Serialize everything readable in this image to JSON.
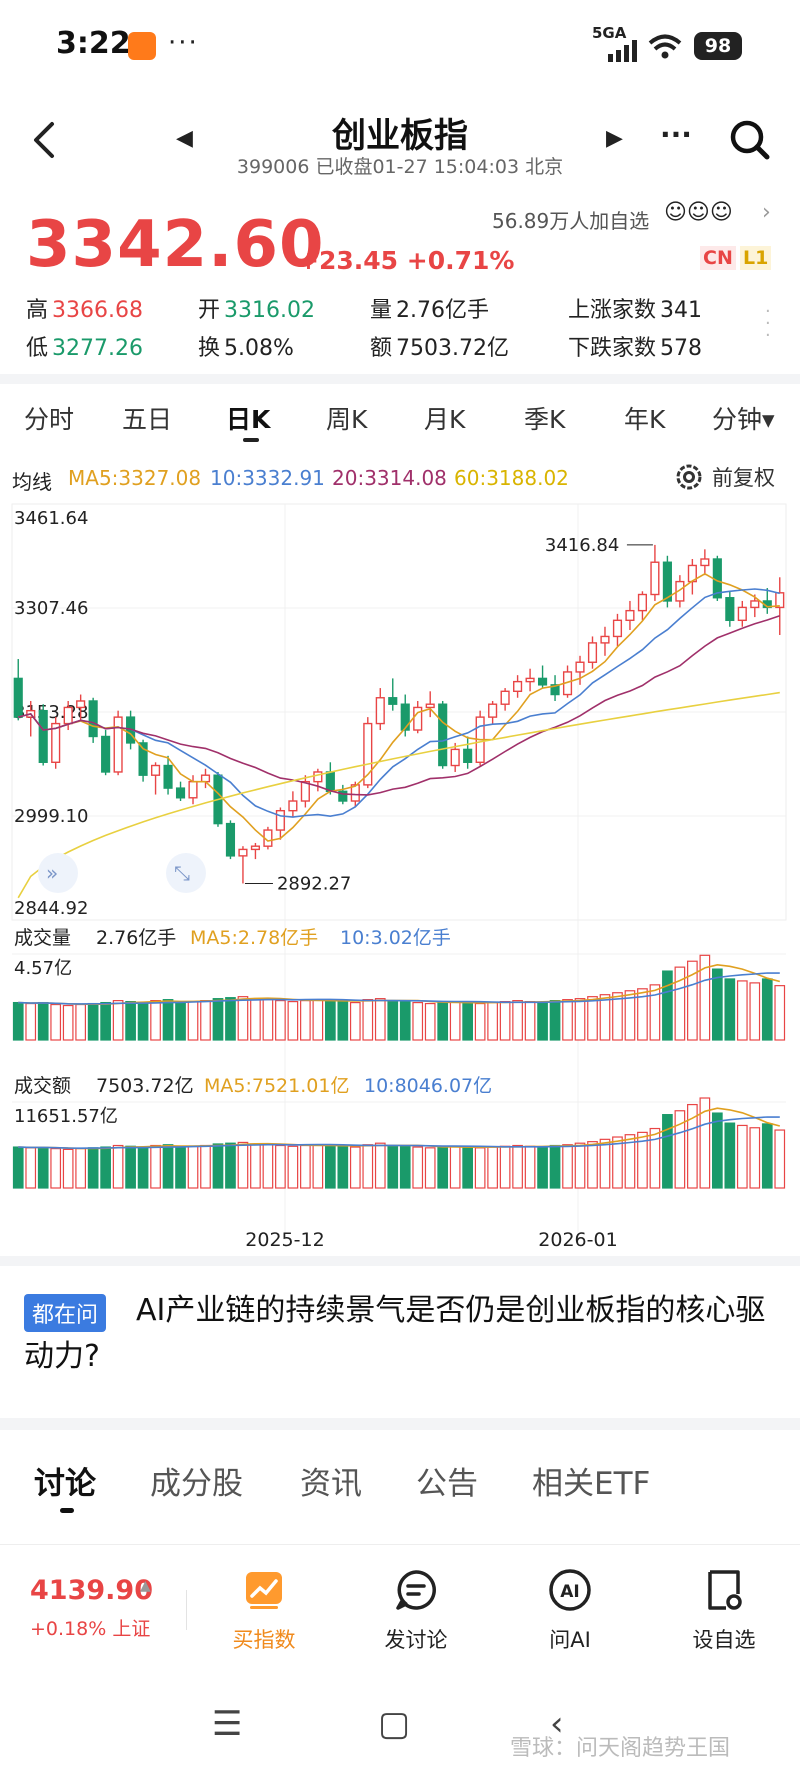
{
  "status_bar": {
    "time": "3:22",
    "dots": "···",
    "network": "5GA",
    "battery": "98"
  },
  "header": {
    "title": "创业板指",
    "code": "399006",
    "status": "已收盘01-27 15:04:03 北京",
    "followers": "56.89万人加自选",
    "icons": [
      "back-icon",
      "prev-icon",
      "next-icon",
      "more-icon",
      "search-icon"
    ]
  },
  "quote": {
    "price": "3342.60",
    "change": "+23.45",
    "change_pct": "+0.71%",
    "tags": [
      "CN",
      "L1"
    ],
    "stats": {
      "high_label": "高",
      "high": "3366.68",
      "open_label": "开",
      "open": "3316.02",
      "vol_label": "量",
      "vol": "2.76亿手",
      "up_label": "上涨家数",
      "up": "341",
      "low_label": "低",
      "low": "3277.26",
      "turn_label": "换",
      "turn": "5.08%",
      "amt_label": "额",
      "amt": "7503.72亿",
      "down_label": "下跌家数",
      "down": "578"
    }
  },
  "period_tabs": [
    "分时",
    "五日",
    "日K",
    "周K",
    "月K",
    "季K",
    "年K",
    "分钟▾"
  ],
  "active_period": "日K",
  "ma_legend": {
    "label": "均线",
    "ma5": "MA5:3327.08",
    "ma10": "10:3332.91",
    "ma20": "20:3314.08",
    "ma60": "60:3188.02",
    "adjust": "前复权"
  },
  "colors": {
    "up": "#e84545",
    "down": "#1a9a6a",
    "ma5": "#e0a020",
    "ma10": "#4a7fd0",
    "ma20": "#a0306a",
    "ma60": "#e8d040"
  },
  "chart_data": [
    {
      "type": "candlestick",
      "title": "",
      "y_ticks": [
        "3461.64",
        "3307.46",
        "3153.28",
        "2999.10",
        "2844.92"
      ],
      "ylim": [
        2844.92,
        3461.64
      ],
      "annotations": {
        "high": "3416.84",
        "low": "2892.27"
      },
      "x_ticks": [
        "2025-12",
        "2026-01"
      ],
      "candles": [
        [
          3210,
          3240,
          3145,
          3150
        ],
        [
          3150,
          3175,
          3120,
          3160
        ],
        [
          3160,
          3170,
          3075,
          3080
        ],
        [
          3080,
          3150,
          3070,
          3140
        ],
        [
          3140,
          3175,
          3130,
          3165
        ],
        [
          3165,
          3185,
          3145,
          3175
        ],
        [
          3175,
          3180,
          3110,
          3120
        ],
        [
          3120,
          3130,
          3060,
          3065
        ],
        [
          3065,
          3160,
          3060,
          3150
        ],
        [
          3150,
          3160,
          3100,
          3110
        ],
        [
          3110,
          3115,
          3050,
          3060
        ],
        [
          3060,
          3080,
          3030,
          3075
        ],
        [
          3075,
          3090,
          3030,
          3040
        ],
        [
          3040,
          3050,
          3020,
          3025
        ],
        [
          3025,
          3060,
          3015,
          3050
        ],
        [
          3050,
          3070,
          3040,
          3060
        ],
        [
          3060,
          3065,
          2980,
          2985
        ],
        [
          2985,
          2990,
          2930,
          2935
        ],
        [
          2935,
          2950,
          2892.27,
          2945
        ],
        [
          2945,
          2955,
          2930,
          2950
        ],
        [
          2950,
          2980,
          2945,
          2975
        ],
        [
          2975,
          3010,
          2960,
          3005
        ],
        [
          3005,
          3035,
          2995,
          3020
        ],
        [
          3020,
          3060,
          3010,
          3050
        ],
        [
          3050,
          3070,
          3035,
          3065
        ],
        [
          3065,
          3080,
          3030,
          3035
        ],
        [
          3035,
          3045,
          3015,
          3020
        ],
        [
          3020,
          3050,
          3010,
          3045
        ],
        [
          3045,
          3150,
          3040,
          3140
        ],
        [
          3140,
          3195,
          3130,
          3180
        ],
        [
          3180,
          3210,
          3160,
          3170
        ],
        [
          3170,
          3185,
          3120,
          3130
        ],
        [
          3130,
          3175,
          3125,
          3165
        ],
        [
          3165,
          3190,
          3150,
          3170
        ],
        [
          3170,
          3175,
          3070,
          3075
        ],
        [
          3075,
          3110,
          3065,
          3100
        ],
        [
          3100,
          3120,
          3070,
          3080
        ],
        [
          3080,
          3160,
          3075,
          3150
        ],
        [
          3150,
          3175,
          3140,
          3170
        ],
        [
          3170,
          3195,
          3160,
          3190
        ],
        [
          3190,
          3215,
          3180,
          3205
        ],
        [
          3205,
          3225,
          3190,
          3210
        ],
        [
          3210,
          3230,
          3195,
          3200
        ],
        [
          3200,
          3215,
          3175,
          3185
        ],
        [
          3185,
          3230,
          3180,
          3220
        ],
        [
          3220,
          3245,
          3200,
          3235
        ],
        [
          3235,
          3275,
          3225,
          3265
        ],
        [
          3265,
          3290,
          3245,
          3275
        ],
        [
          3275,
          3310,
          3260,
          3300
        ],
        [
          3300,
          3330,
          3285,
          3315
        ],
        [
          3315,
          3345,
          3300,
          3340
        ],
        [
          3340,
          3416.84,
          3330,
          3390
        ],
        [
          3390,
          3400,
          3320,
          3330
        ],
        [
          3330,
          3370,
          3320,
          3360
        ],
        [
          3360,
          3395,
          3340,
          3385
        ],
        [
          3385,
          3410,
          3370,
          3395
        ],
        [
          3395,
          3400,
          3330,
          3335
        ],
        [
          3335,
          3345,
          3290,
          3300
        ],
        [
          3300,
          3330,
          3290,
          3320
        ],
        [
          3320,
          3340,
          3305,
          3330
        ],
        [
          3330,
          3350,
          3310,
          3320
        ],
        [
          3320,
          3366.68,
          3277.26,
          3342.6
        ]
      ]
    },
    {
      "type": "bar",
      "title": "成交量",
      "current": "2.76亿手",
      "ma5": "MA5:2.78亿手",
      "ma10": "10:3.02亿手",
      "ymax_label": "4.57亿",
      "ymax": 4.57,
      "values": [
        1.9,
        1.85,
        1.9,
        1.8,
        1.75,
        1.8,
        1.85,
        1.9,
        2.0,
        1.95,
        1.9,
        2.0,
        2.05,
        1.9,
        1.95,
        2.0,
        2.1,
        2.15,
        2.2,
        2.1,
        2.05,
        2.0,
        1.95,
        2.0,
        2.05,
        2.0,
        1.95,
        1.9,
        2.05,
        2.1,
        2.0,
        1.95,
        1.9,
        1.85,
        1.9,
        1.95,
        1.9,
        1.85,
        1.9,
        1.95,
        2.0,
        1.95,
        1.9,
        2.0,
        2.05,
        2.1,
        2.2,
        2.3,
        2.4,
        2.5,
        2.6,
        2.8,
        3.5,
        3.7,
        4.0,
        4.3,
        3.6,
        3.1,
        3.0,
        2.9,
        3.1,
        2.76
      ]
    },
    {
      "type": "bar",
      "title": "成交额",
      "current": "7503.72亿",
      "ma5": "MA5:7521.01亿",
      "ma10": "10:8046.07亿",
      "ymax_label": "11651.57亿",
      "ymax": 11651.57,
      "values": [
        5300,
        5200,
        5250,
        5100,
        5000,
        5100,
        5200,
        5300,
        5500,
        5400,
        5300,
        5500,
        5600,
        5300,
        5400,
        5500,
        5700,
        5800,
        5900,
        5700,
        5600,
        5500,
        5400,
        5500,
        5600,
        5500,
        5400,
        5300,
        5600,
        5800,
        5500,
        5400,
        5300,
        5200,
        5300,
        5400,
        5300,
        5200,
        5300,
        5400,
        5500,
        5400,
        5300,
        5500,
        5600,
        5800,
        6000,
        6300,
        6600,
        6900,
        7200,
        7700,
        9500,
        10000,
        10800,
        11651,
        9700,
        8400,
        8100,
        7800,
        8300,
        7503
      ]
    }
  ],
  "question": {
    "tag": "都在问",
    "text": "AI产业链的持续景气是否仍是创业板指的核心驱动力?"
  },
  "content_tabs": [
    "讨论",
    "成分股",
    "资讯",
    "公告",
    "相关ETF"
  ],
  "active_content_tab": "讨论",
  "bottom_bar": {
    "index_value": "4139.90",
    "index_sub": "+0.18% 上证",
    "actions": [
      "买指数",
      "发讨论",
      "问AI",
      "设自选"
    ]
  },
  "watermark": "雪球：问天阁趋势王国"
}
